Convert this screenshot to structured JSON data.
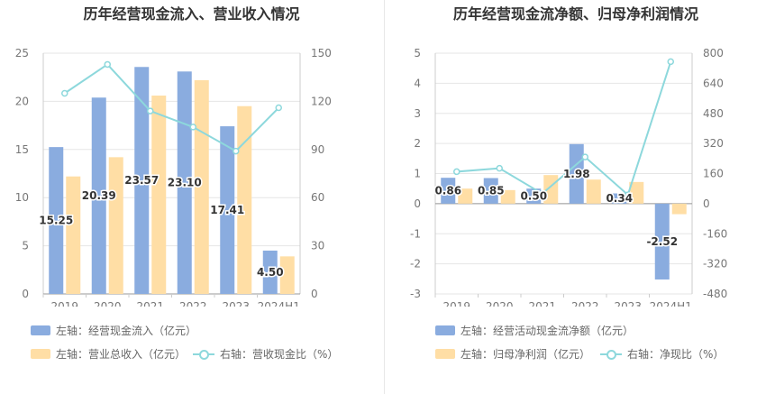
{
  "colors": {
    "primary": "#8aacdf",
    "secondary": "#ffdea5",
    "line": "#8dd8dc"
  },
  "left": {
    "title": "历年经营现金流入、营业收入情况",
    "legend": {
      "primary": "左轴：经营现金流入（亿元）",
      "secondary": "左轴：营业总收入（亿元）",
      "line": "右轴：营收现金比（%）"
    }
  },
  "right": {
    "title": "历年经营现金流净额、归母净利润情况",
    "legend": {
      "primary": "左轴：经营活动现金流净额（亿元）",
      "secondary": "左轴：归母净利润（亿元）",
      "line": "右轴：净现比（%）"
    }
  },
  "chart_data": [
    {
      "type": "bar",
      "title": "历年经营现金流入、营业收入情况",
      "categories": [
        "2019",
        "2020",
        "2021",
        "2022",
        "2023",
        "2024H1"
      ],
      "series": [
        {
          "name": "左轴：经营现金流入（亿元）",
          "axis": "left",
          "kind": "bar",
          "values": [
            15.25,
            20.39,
            23.57,
            23.1,
            17.41,
            4.5
          ],
          "labels": [
            "15.25",
            "20.39",
            "23.57",
            "23.10",
            "17.41",
            "4.50"
          ]
        },
        {
          "name": "左轴：营业总收入（亿元）",
          "axis": "left",
          "kind": "bar",
          "values": [
            12.2,
            14.2,
            20.6,
            22.2,
            19.5,
            3.9
          ]
        },
        {
          "name": "右轴：营收现金比（%）",
          "axis": "right",
          "kind": "line",
          "values": [
            125,
            143,
            114,
            104,
            89,
            116
          ]
        }
      ],
      "ylim_left": [
        0,
        25
      ],
      "yticks_left": [
        0,
        5,
        10,
        15,
        20,
        25
      ],
      "ylim_right": [
        0,
        150
      ],
      "yticks_right": [
        0,
        30,
        60,
        90,
        120,
        150
      ],
      "legend_position": "bottom",
      "grid": true
    },
    {
      "type": "bar",
      "title": "历年经营现金流净额、归母净利润情况",
      "categories": [
        "2019",
        "2020",
        "2021",
        "2022",
        "2023",
        "2024H1"
      ],
      "series": [
        {
          "name": "左轴：经营活动现金流净额（亿元）",
          "axis": "left",
          "kind": "bar",
          "values": [
            0.86,
            0.85,
            0.5,
            1.98,
            0.34,
            -2.52
          ],
          "labels": [
            "0.86",
            "0.85",
            "0.50",
            "1.98",
            "0.34",
            "-2.52"
          ]
        },
        {
          "name": "左轴：归母净利润（亿元）",
          "axis": "left",
          "kind": "bar",
          "values": [
            0.5,
            0.45,
            0.95,
            0.8,
            0.72,
            -0.35
          ]
        },
        {
          "name": "右轴：净现比（%）",
          "axis": "right",
          "kind": "line",
          "values": [
            170,
            188,
            53,
            248,
            47,
            755
          ]
        }
      ],
      "ylim_left": [
        -3,
        5
      ],
      "yticks_left": [
        -3,
        -2,
        -1,
        0,
        1,
        2,
        3,
        4,
        5
      ],
      "ylim_right": [
        -480,
        800
      ],
      "yticks_right": [
        -480,
        -320,
        -160,
        0,
        160,
        320,
        480,
        640,
        800
      ],
      "legend_position": "bottom",
      "grid": true
    }
  ]
}
